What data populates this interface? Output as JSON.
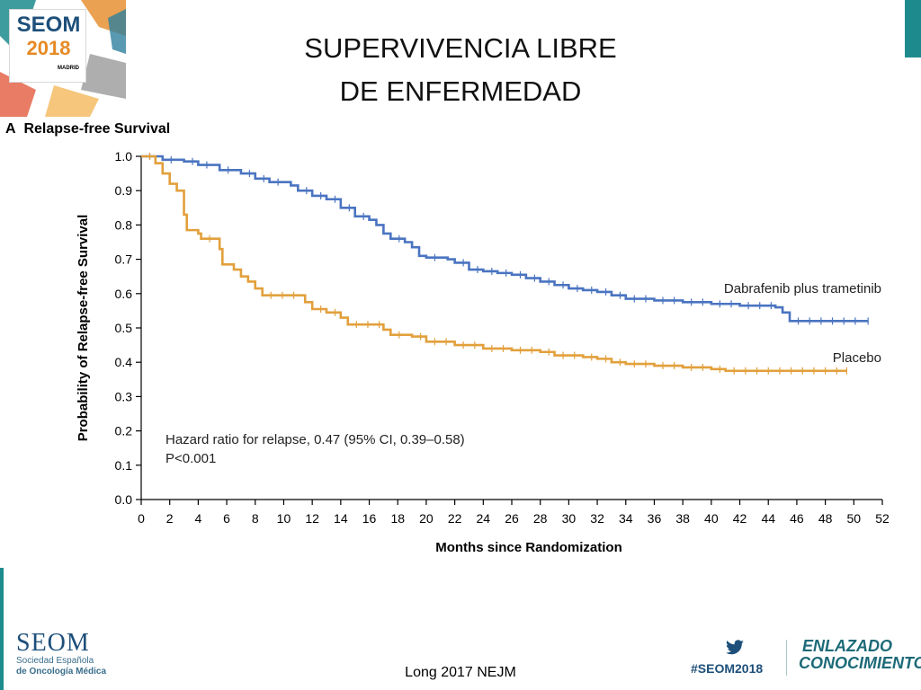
{
  "slide": {
    "title_line1": "SUPERVIVENCIA LIBRE",
    "title_line2": "DE ENFERMEDAD",
    "citation": "Long 2017 NEJM"
  },
  "logo": {
    "seom": "SEOM",
    "year": "2018",
    "city": "MADRID"
  },
  "footer": {
    "seom": "SEOM",
    "society_line1": "Sociedad Española",
    "society_line2": "de Oncología Médica",
    "hashtag": "#SEOM2018",
    "brand_line1": "ENLAZADO",
    "brand_line2": "CONOCIMIENTO"
  },
  "colors": {
    "dabrafenib": "#4a74c1",
    "placebo": "#e2a03c",
    "teal": "#1d8b8d"
  },
  "chart_data": {
    "type": "line",
    "panel_label": "A",
    "title": "Relapse-free Survival",
    "xlabel": "Months since Randomization",
    "ylabel": "Probability of Relapse-free Survival",
    "xlim": [
      0,
      52
    ],
    "ylim": [
      0,
      1.0
    ],
    "xticks": [
      0,
      2,
      4,
      6,
      8,
      10,
      12,
      14,
      16,
      18,
      20,
      22,
      24,
      26,
      28,
      30,
      32,
      34,
      36,
      38,
      40,
      42,
      44,
      46,
      48,
      50,
      52
    ],
    "yticks": [
      "0.0",
      "0.1",
      "0.2",
      "0.3",
      "0.4",
      "0.5",
      "0.6",
      "0.7",
      "0.8",
      "0.9",
      "1.0"
    ],
    "annotation_line1": "Hazard ratio for relapse, 0.47 (95% CI, 0.39–0.58)",
    "annotation_line2": "P<0.001",
    "series": [
      {
        "name": "Dabrafenib plus trametinib",
        "points": [
          [
            0,
            1.0
          ],
          [
            1.5,
            0.99
          ],
          [
            3,
            0.985
          ],
          [
            4,
            0.975
          ],
          [
            5.5,
            0.96
          ],
          [
            7,
            0.95
          ],
          [
            8,
            0.935
          ],
          [
            9,
            0.925
          ],
          [
            10.5,
            0.915
          ],
          [
            11,
            0.9
          ],
          [
            12,
            0.885
          ],
          [
            13,
            0.875
          ],
          [
            14,
            0.85
          ],
          [
            15,
            0.825
          ],
          [
            16,
            0.815
          ],
          [
            16.5,
            0.8
          ],
          [
            17,
            0.775
          ],
          [
            17.5,
            0.76
          ],
          [
            18.5,
            0.75
          ],
          [
            19,
            0.735
          ],
          [
            19.5,
            0.71
          ],
          [
            20,
            0.705
          ],
          [
            21.5,
            0.7
          ],
          [
            22,
            0.69
          ],
          [
            23,
            0.67
          ],
          [
            24,
            0.665
          ],
          [
            25,
            0.66
          ],
          [
            26,
            0.655
          ],
          [
            27,
            0.645
          ],
          [
            28,
            0.635
          ],
          [
            29,
            0.625
          ],
          [
            30,
            0.615
          ],
          [
            31,
            0.61
          ],
          [
            32,
            0.605
          ],
          [
            33,
            0.595
          ],
          [
            34,
            0.585
          ],
          [
            36,
            0.58
          ],
          [
            38,
            0.575
          ],
          [
            40,
            0.57
          ],
          [
            42,
            0.565
          ],
          [
            44.5,
            0.56
          ],
          [
            45,
            0.545
          ],
          [
            45.5,
            0.52
          ],
          [
            51,
            0.52
          ]
        ]
      },
      {
        "name": "Placebo",
        "points": [
          [
            0,
            1.0
          ],
          [
            1,
            0.98
          ],
          [
            1.5,
            0.95
          ],
          [
            2,
            0.92
          ],
          [
            2.5,
            0.9
          ],
          [
            3,
            0.83
          ],
          [
            3.2,
            0.785
          ],
          [
            4,
            0.775
          ],
          [
            4.2,
            0.76
          ],
          [
            5.5,
            0.73
          ],
          [
            5.7,
            0.685
          ],
          [
            6.5,
            0.67
          ],
          [
            7,
            0.65
          ],
          [
            7.5,
            0.635
          ],
          [
            8,
            0.615
          ],
          [
            8.5,
            0.595
          ],
          [
            11.5,
            0.575
          ],
          [
            12,
            0.555
          ],
          [
            13,
            0.545
          ],
          [
            14,
            0.53
          ],
          [
            14.5,
            0.51
          ],
          [
            17,
            0.495
          ],
          [
            17.5,
            0.48
          ],
          [
            19,
            0.475
          ],
          [
            20,
            0.46
          ],
          [
            22,
            0.45
          ],
          [
            24,
            0.44
          ],
          [
            26,
            0.435
          ],
          [
            28,
            0.43
          ],
          [
            29,
            0.42
          ],
          [
            31,
            0.415
          ],
          [
            32,
            0.41
          ],
          [
            33,
            0.4
          ],
          [
            34,
            0.395
          ],
          [
            36,
            0.39
          ],
          [
            38,
            0.385
          ],
          [
            40,
            0.38
          ],
          [
            41,
            0.375
          ],
          [
            49.5,
            0.375
          ]
        ]
      }
    ]
  }
}
